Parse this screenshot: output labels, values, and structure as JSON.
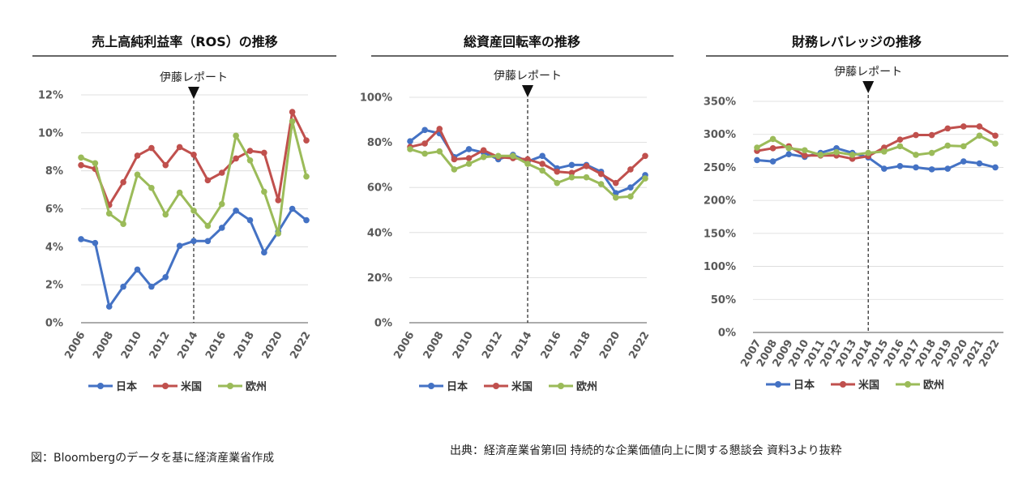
{
  "colors": {
    "japan": "#4472C4",
    "us": "#C0504D",
    "europe": "#9BBB59",
    "grid": "#d9d9d9",
    "axis": "#595959"
  },
  "chart_data": [
    {
      "type": "line",
      "title": "売上高純利益率（ROS）の推移",
      "x": [
        2006,
        2007,
        2008,
        2009,
        2010,
        2011,
        2012,
        2013,
        2014,
        2015,
        2016,
        2017,
        2018,
        2019,
        2020,
        2021,
        2022
      ],
      "x_tick_labels": [
        "2006",
        "2008",
        "2010",
        "2012",
        "2014",
        "2016",
        "2018",
        "2020",
        "2022"
      ],
      "y_tick_labels": [
        "0%",
        "2%",
        "4%",
        "6%",
        "8%",
        "10%",
        "12%"
      ],
      "ylim": [
        0,
        12
      ],
      "marker_year": 2014,
      "marker_label": "伊藤レポート",
      "series": [
        {
          "name": "日本",
          "color": "#4472C4",
          "values": [
            4.4,
            4.2,
            0.85,
            1.9,
            2.8,
            1.9,
            2.4,
            4.05,
            4.3,
            4.3,
            5.0,
            5.9,
            5.4,
            3.7,
            4.8,
            6.0,
            5.4
          ]
        },
        {
          "name": "米国",
          "color": "#C0504D",
          "values": [
            8.3,
            8.1,
            6.2,
            7.4,
            8.8,
            9.2,
            8.3,
            9.25,
            8.85,
            7.5,
            7.9,
            8.65,
            9.05,
            8.95,
            6.45,
            11.1,
            9.6
          ]
        },
        {
          "name": "欧州",
          "color": "#9BBB59",
          "values": [
            8.7,
            8.4,
            5.75,
            5.2,
            7.8,
            7.1,
            5.7,
            6.85,
            5.9,
            5.1,
            6.25,
            9.85,
            8.55,
            6.9,
            4.7,
            10.6,
            7.7
          ]
        }
      ]
    },
    {
      "type": "line",
      "title": "総資産回転率の推移",
      "x": [
        2006,
        2007,
        2008,
        2009,
        2010,
        2011,
        2012,
        2013,
        2014,
        2015,
        2016,
        2017,
        2018,
        2019,
        2020,
        2021,
        2022
      ],
      "x_tick_labels": [
        "2006",
        "2008",
        "2010",
        "2012",
        "2014",
        "2016",
        "2018",
        "2020",
        "2022"
      ],
      "y_tick_labels": [
        "0%",
        "20%",
        "40%",
        "60%",
        "80%",
        "100%"
      ],
      "ylim": [
        0,
        100
      ],
      "marker_year": 2014,
      "marker_label": "伊藤レポート",
      "series": [
        {
          "name": "日本",
          "color": "#4472C4",
          "values": [
            80.5,
            85.5,
            84,
            73.5,
            77,
            75.5,
            72.5,
            74.5,
            71.5,
            74,
            68.5,
            70,
            70,
            67,
            57.5,
            60,
            65.5
          ]
        },
        {
          "name": "米国",
          "color": "#C0504D",
          "values": [
            78,
            79.5,
            86,
            72.5,
            73,
            76.5,
            73.5,
            73,
            72.5,
            70.5,
            67,
            66.5,
            69.5,
            66,
            62,
            68,
            74
          ]
        },
        {
          "name": "欧州",
          "color": "#9BBB59",
          "values": [
            77,
            75,
            76,
            68,
            70.5,
            73.5,
            74,
            74,
            70.5,
            67.5,
            62,
            64.5,
            64.5,
            61.5,
            55.5,
            56,
            64
          ]
        }
      ]
    },
    {
      "type": "line",
      "title": "財務レバレッジの推移",
      "x": [
        2007,
        2008,
        2009,
        2010,
        2011,
        2012,
        2013,
        2014,
        2015,
        2016,
        2017,
        2018,
        2019,
        2020,
        2021,
        2022
      ],
      "x_tick_labels": [
        "2007",
        "2008",
        "2009",
        "2010",
        "2011",
        "2012",
        "2013",
        "2014",
        "2015",
        "2016",
        "2017",
        "2018",
        "2019",
        "2020",
        "2021",
        "2022"
      ],
      "y_tick_labels": [
        "0%",
        "50%",
        "100%",
        "150%",
        "200%",
        "250%",
        "300%",
        "350%"
      ],
      "ylim": [
        0,
        350
      ],
      "marker_year": 2014,
      "marker_label": "伊藤レポート",
      "series": [
        {
          "name": "日本",
          "color": "#4472C4",
          "values": [
            261,
            259,
            270,
            266,
            272,
            279,
            272,
            265,
            248,
            252,
            250,
            247,
            248,
            259,
            256,
            250
          ]
        },
        {
          "name": "米国",
          "color": "#C0504D",
          "values": [
            275,
            279,
            282,
            268,
            268,
            268,
            263,
            267,
            280,
            292,
            299,
            299,
            309,
            312,
            312,
            298
          ]
        },
        {
          "name": "欧州",
          "color": "#9BBB59",
          "values": [
            280,
            293,
            279,
            276,
            269,
            273,
            269,
            272,
            274,
            282,
            269,
            272,
            283,
            282,
            298,
            286
          ]
        }
      ]
    }
  ],
  "footnote_left": "図：Bloombergのデータを基に経済産業省作成",
  "footnote_right": "出典：経済産業省第Ⅰ回 持続的な企業価値向上に関する懇談会 資料3より抜粋"
}
